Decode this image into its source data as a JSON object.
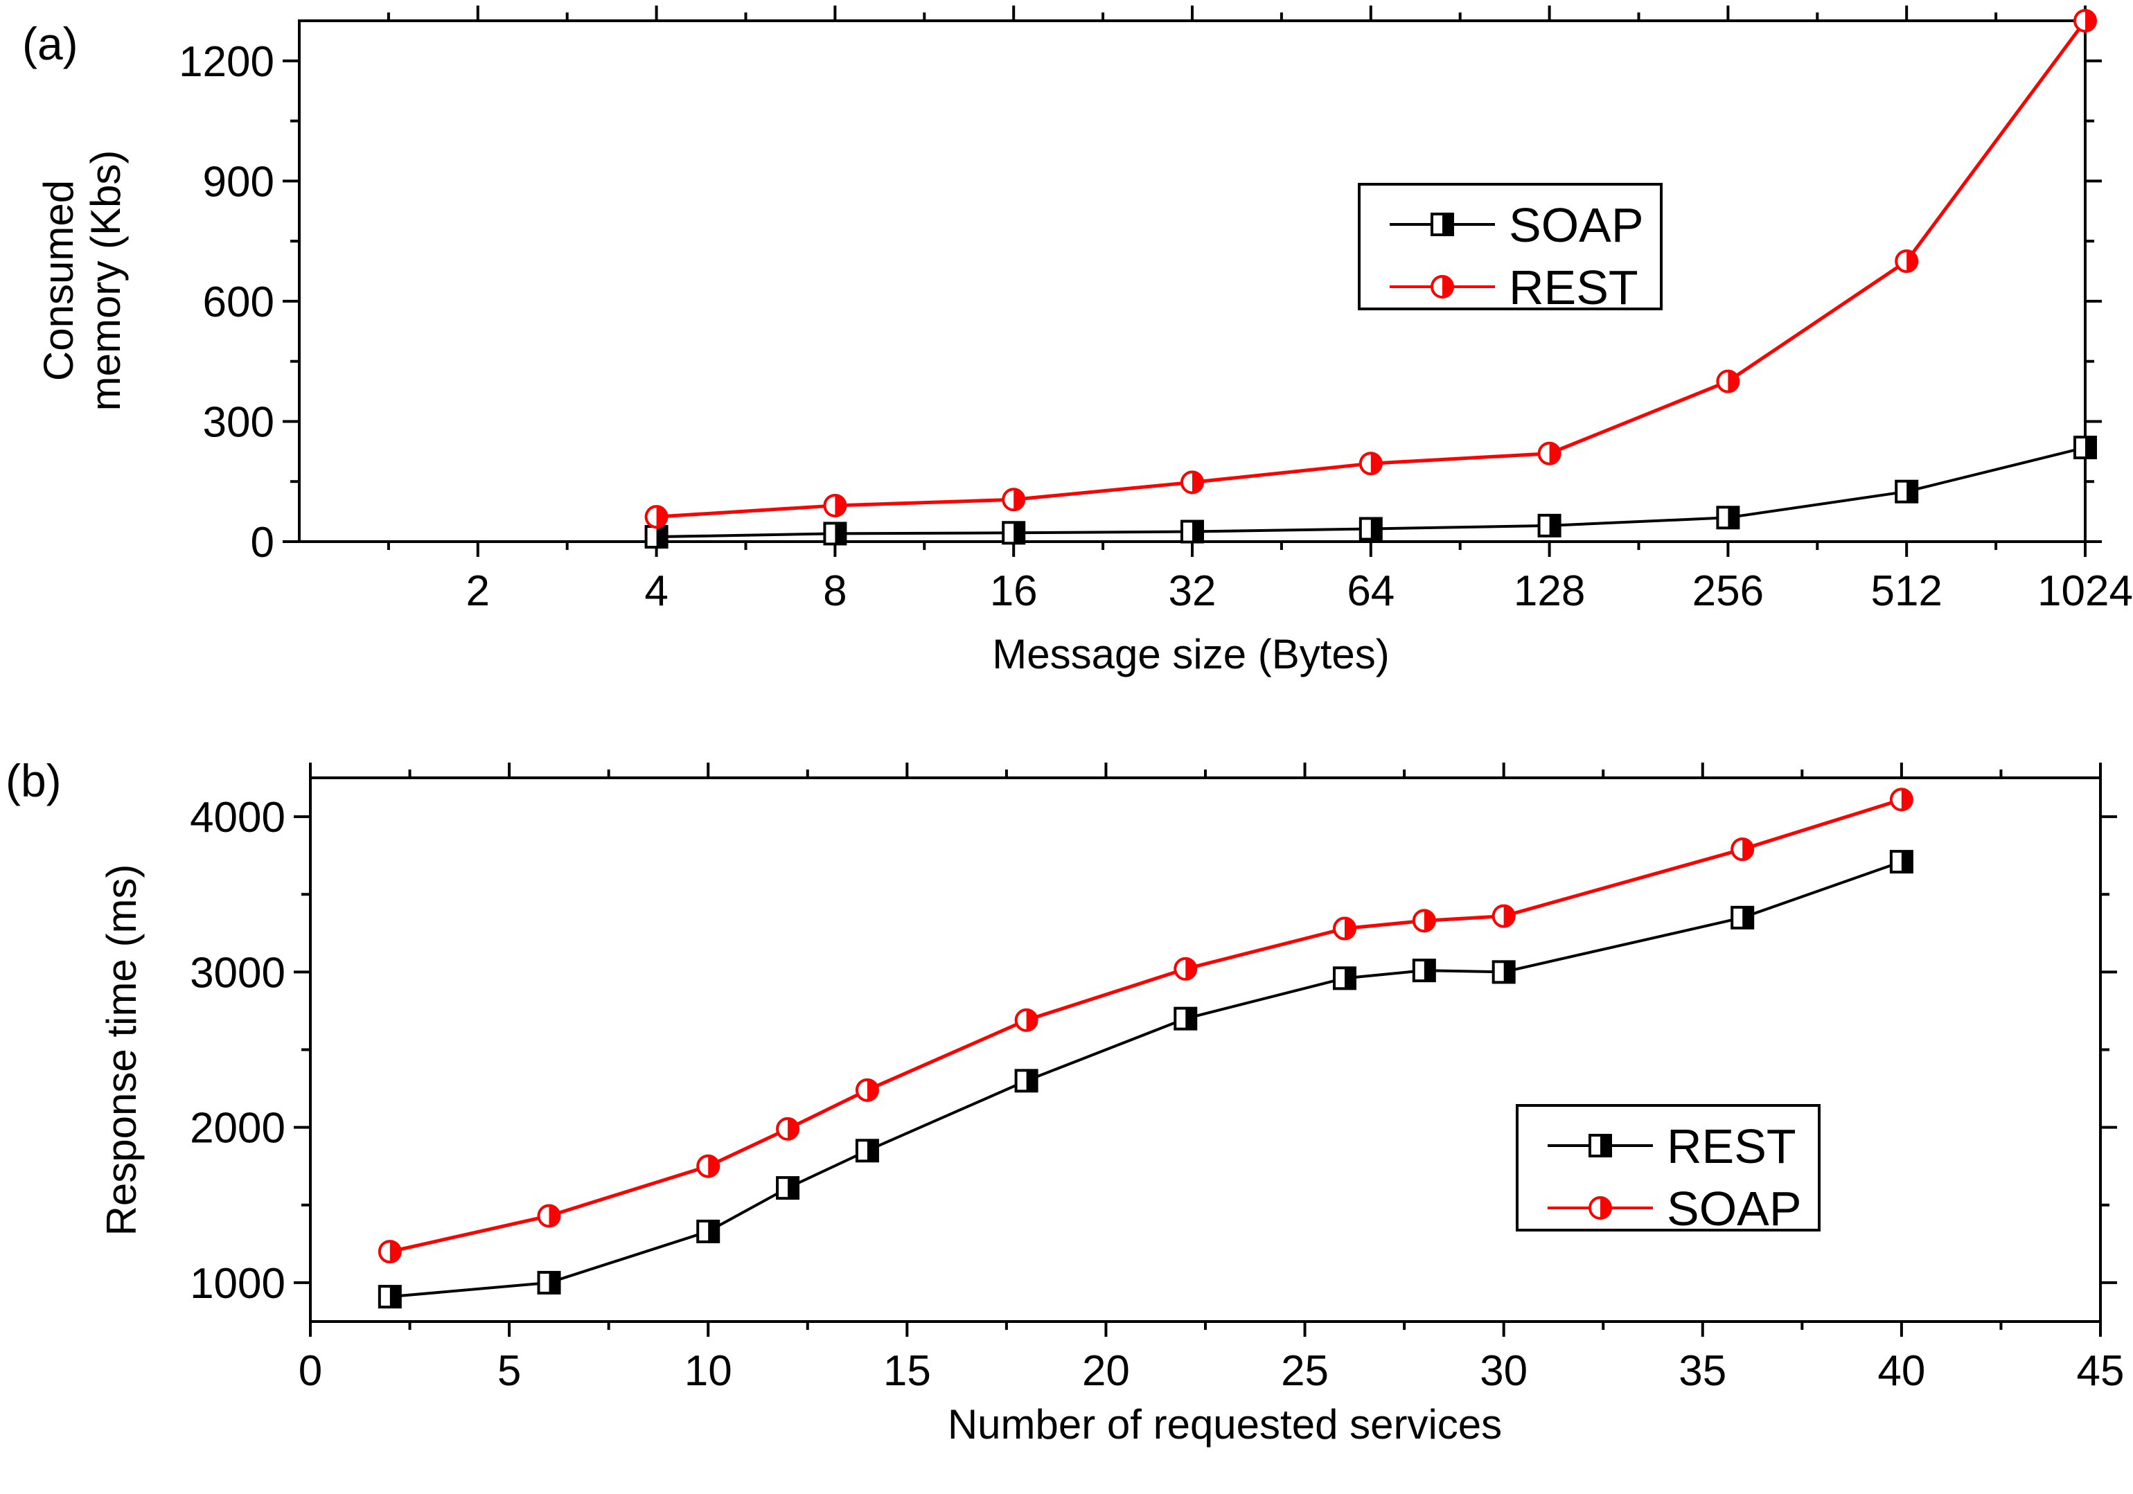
{
  "chart_data": [
    {
      "panel_label": "(a)",
      "type": "line",
      "xscale": "log2",
      "x": [
        4,
        8,
        16,
        32,
        64,
        128,
        256,
        512,
        1024
      ],
      "xticks": [
        2,
        4,
        8,
        16,
        32,
        64,
        128,
        256,
        512,
        1024
      ],
      "xlim": [
        1,
        1024
      ],
      "ylim": [
        0,
        1300
      ],
      "yticks": [
        0,
        300,
        600,
        900,
        1200
      ],
      "xlabel": "Message size (Bytes)",
      "ylabel": [
        "Consumed",
        "memory (Kbs)"
      ],
      "legend_position": "center-right",
      "series": [
        {
          "name": "SOAP",
          "color": "#000000",
          "marker": "half-filled-square",
          "values": [
            12,
            20,
            22,
            25,
            32,
            40,
            60,
            125,
            235
          ]
        },
        {
          "name": "REST",
          "color": "#ff0000",
          "marker": "half-filled-circle",
          "values": [
            62,
            90,
            105,
            148,
            195,
            220,
            400,
            700,
            1300
          ]
        }
      ]
    },
    {
      "panel_label": "(b)",
      "type": "line",
      "x": [
        2,
        6,
        10,
        12,
        14,
        18,
        22,
        26,
        28,
        30,
        36,
        40
      ],
      "xticks": [
        0,
        5,
        10,
        15,
        20,
        25,
        30,
        35,
        40,
        45
      ],
      "xlim": [
        0,
        45
      ],
      "ylim": [
        750,
        4250
      ],
      "yticks": [
        1000,
        2000,
        3000,
        4000
      ],
      "xlabel": "Number of requested services",
      "ylabel": [
        "Response time (ms)"
      ],
      "legend_position": "lower-right",
      "series": [
        {
          "name": "REST",
          "color": "#000000",
          "marker": "half-filled-square",
          "values": [
            910,
            1000,
            1330,
            1610,
            1850,
            2300,
            2700,
            2960,
            3010,
            3000,
            3350,
            3710
          ]
        },
        {
          "name": "SOAP",
          "color": "#ff0000",
          "marker": "half-filled-circle",
          "values": [
            1200,
            1430,
            1750,
            1990,
            2240,
            2690,
            3020,
            3280,
            3330,
            3360,
            3790,
            4110
          ]
        }
      ]
    }
  ]
}
